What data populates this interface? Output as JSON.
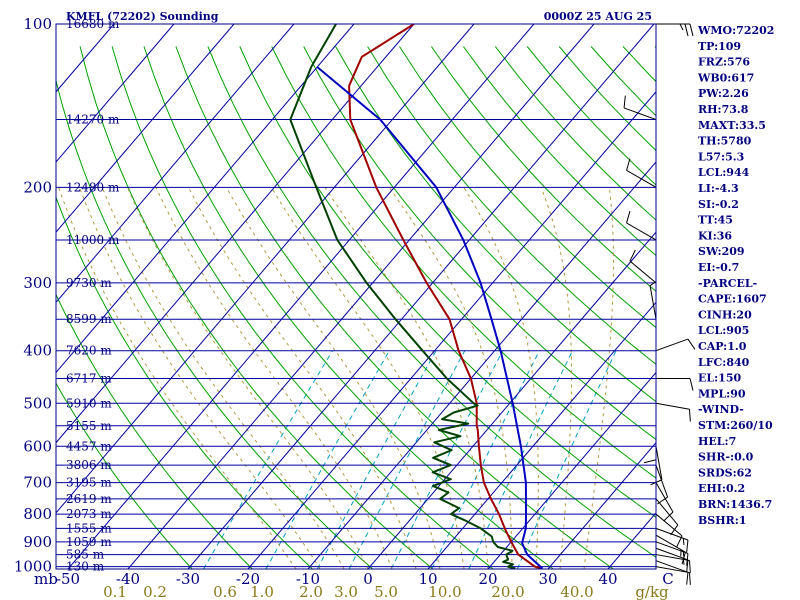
{
  "header": {
    "station": "KMFL (72202) Sounding",
    "datetime": "0000Z 25 AUG 25"
  },
  "indices": [
    "WMO:72202",
    "TP:109",
    "FRZ:576",
    "WB0:617",
    "PW:2.26",
    "RH:73.8",
    "MAXT:33.5",
    "TH:5780",
    "L57:5.3",
    "LCL:944",
    "LI:-4.3",
    "SI:-0.2",
    "TT:45",
    "KI:36",
    "SW:209",
    "EI:-0.7",
    "-PARCEL-",
    "CAPE:1607",
    "CINH:20",
    "LCL:905",
    "CAP:1.0",
    "LFC:840",
    "EL:150",
    "MPL:90",
    "-WIND-",
    "STM:260/10",
    "HEL:7",
    "SHR-:0.0",
    "SRDS:62",
    "EHI:0.2",
    "BRN:1436.7",
    "BSHR:1"
  ],
  "colors": {
    "frame": "#000080",
    "isotherm": "#0000a0",
    "dry_adiabat": "#00a000",
    "moist_adiabat": "#b09a40",
    "mixing_ratio": "#00a0c0",
    "temperature": "#a00000",
    "dewpoint": "#004000",
    "parcel": "#0000c0",
    "mix_label": "#8b7a1a"
  },
  "chart_data": {
    "type": "skew-t",
    "title": "KMFL (72202) Sounding 0000Z 25 AUG 25",
    "xlabel": "",
    "ylabel": "mb",
    "pressure_ticks": [
      100,
      200,
      300,
      400,
      500,
      600,
      700,
      800,
      900,
      1000
    ],
    "pressure_tick_labels": [
      "100",
      "200",
      "300",
      "400",
      "500",
      "600",
      "700",
      "800",
      "900",
      "1000"
    ],
    "ylabel_corner": "mb",
    "temperature_ticks": [
      -50,
      -40,
      -30,
      -20,
      -10,
      0,
      10,
      20,
      30,
      40,
      50
    ],
    "temperature_tick_labels": [
      "-50",
      "-40",
      "-30",
      "-20",
      "-10",
      "0",
      "10",
      "20",
      "30",
      "40",
      "C"
    ],
    "mixing_ratio_labels": [
      "0.1",
      "0.2",
      "0.6",
      "1.0",
      "2.0",
      "3.0",
      "5.0",
      "10.0",
      "20.0",
      "40.0",
      "g/kg"
    ],
    "height_levels": [
      {
        "p": 100,
        "label": "16680 m"
      },
      {
        "p": 150,
        "label": "14270 m"
      },
      {
        "p": 200,
        "label": "12480 m"
      },
      {
        "p": 250,
        "label": "11000 m"
      },
      {
        "p": 300,
        "label": "9730 m"
      },
      {
        "p": 350,
        "label": "8599 m"
      },
      {
        "p": 400,
        "label": "7620 m"
      },
      {
        "p": 450,
        "label": "6717 m"
      },
      {
        "p": 500,
        "label": "5910 m"
      },
      {
        "p": 550,
        "label": "5155 m"
      },
      {
        "p": 600,
        "label": "4457 m"
      },
      {
        "p": 650,
        "label": "3806 m"
      },
      {
        "p": 700,
        "label": "3195 m"
      },
      {
        "p": 750,
        "label": "2619 m"
      },
      {
        "p": 800,
        "label": "2073 m"
      },
      {
        "p": 850,
        "label": "1555 m"
      },
      {
        "p": 900,
        "label": "1059 m"
      },
      {
        "p": 950,
        "label": "585 m"
      },
      {
        "p": 1000,
        "label": "130 m"
      }
    ],
    "series": [
      {
        "name": "temperature",
        "points": [
          {
            "p": 1008,
            "t": 29.0
          },
          {
            "p": 1000,
            "t": 27.5
          },
          {
            "p": 950,
            "t": 23.0
          },
          {
            "p": 900,
            "t": 20.0
          },
          {
            "p": 850,
            "t": 17.0
          },
          {
            "p": 800,
            "t": 14.0
          },
          {
            "p": 750,
            "t": 10.5
          },
          {
            "p": 700,
            "t": 7.0
          },
          {
            "p": 650,
            "t": 4.0
          },
          {
            "p": 600,
            "t": 1.0
          },
          {
            "p": 560,
            "t": -1.5
          },
          {
            "p": 550,
            "t": -2.3
          },
          {
            "p": 500,
            "t": -5.5
          },
          {
            "p": 450,
            "t": -10.0
          },
          {
            "p": 400,
            "t": -16.0
          },
          {
            "p": 350,
            "t": -22.0
          },
          {
            "p": 300,
            "t": -31.0
          },
          {
            "p": 250,
            "t": -41.0
          },
          {
            "p": 200,
            "t": -53.0
          },
          {
            "p": 150,
            "t": -67.0
          },
          {
            "p": 130,
            "t": -72.0
          },
          {
            "p": 115,
            "t": -74.0
          },
          {
            "p": 100,
            "t": -70.0
          }
        ]
      },
      {
        "name": "dewpoint",
        "points": [
          {
            "p": 1008,
            "t": 24.5
          },
          {
            "p": 1000,
            "t": 23.0
          },
          {
            "p": 990,
            "t": 23.5
          },
          {
            "p": 980,
            "t": 21.5
          },
          {
            "p": 970,
            "t": 22.0
          },
          {
            "p": 950,
            "t": 21.0
          },
          {
            "p": 935,
            "t": 21.5
          },
          {
            "p": 920,
            "t": 18.5
          },
          {
            "p": 900,
            "t": 17.0
          },
          {
            "p": 880,
            "t": 16.0
          },
          {
            "p": 860,
            "t": 14.0
          },
          {
            "p": 850,
            "t": 13.0
          },
          {
            "p": 820,
            "t": 9.0
          },
          {
            "p": 800,
            "t": 6.0
          },
          {
            "p": 780,
            "t": 6.5
          },
          {
            "p": 750,
            "t": 2.0
          },
          {
            "p": 730,
            "t": 2.5
          },
          {
            "p": 710,
            "t": -1.0
          },
          {
            "p": 690,
            "t": 1.0
          },
          {
            "p": 670,
            "t": -3.0
          },
          {
            "p": 650,
            "t": -1.0
          },
          {
            "p": 630,
            "t": -5.0
          },
          {
            "p": 610,
            "t": -3.0
          },
          {
            "p": 590,
            "t": -7.0
          },
          {
            "p": 575,
            "t": -3.5
          },
          {
            "p": 560,
            "t": -8.0
          },
          {
            "p": 545,
            "t": -4.0
          },
          {
            "p": 535,
            "t": -9.0
          },
          {
            "p": 520,
            "t": -8.0
          },
          {
            "p": 505,
            "t": -5.0
          },
          {
            "p": 500,
            "t": -6.0
          },
          {
            "p": 450,
            "t": -14.0
          },
          {
            "p": 400,
            "t": -22.0
          },
          {
            "p": 350,
            "t": -31.0
          },
          {
            "p": 300,
            "t": -41.0
          },
          {
            "p": 250,
            "t": -52.0
          },
          {
            "p": 200,
            "t": -63.0
          },
          {
            "p": 150,
            "t": -77.0
          },
          {
            "p": 120,
            "t": -81.0
          },
          {
            "p": 100,
            "t": -83.0
          }
        ]
      },
      {
        "name": "parcel",
        "points": [
          {
            "p": 1008,
            "t": 29.0
          },
          {
            "p": 950,
            "t": 24.5
          },
          {
            "p": 905,
            "t": 22.0
          },
          {
            "p": 850,
            "t": 20.5
          },
          {
            "p": 800,
            "t": 18.5
          },
          {
            "p": 700,
            "t": 14.0
          },
          {
            "p": 600,
            "t": 8.0
          },
          {
            "p": 500,
            "t": 0.5
          },
          {
            "p": 400,
            "t": -9.0
          },
          {
            "p": 350,
            "t": -15.0
          },
          {
            "p": 300,
            "t": -22.0
          },
          {
            "p": 250,
            "t": -31.0
          },
          {
            "p": 200,
            "t": -43.0
          },
          {
            "p": 150,
            "t": -62.0
          },
          {
            "p": 120,
            "t": -80.0
          }
        ]
      }
    ],
    "wind_barbs": [
      {
        "p": 1000,
        "dir": 100,
        "spd": 10
      },
      {
        "p": 975,
        "dir": 110,
        "spd": 10
      },
      {
        "p": 950,
        "dir": 100,
        "spd": 10
      },
      {
        "p": 925,
        "dir": 110,
        "spd": 15
      },
      {
        "p": 900,
        "dir": 110,
        "spd": 15
      },
      {
        "p": 875,
        "dir": 120,
        "spd": 15
      },
      {
        "p": 850,
        "dir": 110,
        "spd": 15
      },
      {
        "p": 800,
        "dir": 130,
        "spd": 10
      },
      {
        "p": 750,
        "dir": 140,
        "spd": 10
      },
      {
        "p": 700,
        "dir": 150,
        "spd": 10
      },
      {
        "p": 650,
        "dir": 160,
        "spd": 10
      },
      {
        "p": 600,
        "dir": 170,
        "spd": 10
      },
      {
        "p": 550,
        "dir": 180,
        "spd": 10
      },
      {
        "p": 500,
        "dir": 100,
        "spd": 10
      },
      {
        "p": 450,
        "dir": 90,
        "spd": 10
      },
      {
        "p": 400,
        "dir": 70,
        "spd": 10
      },
      {
        "p": 350,
        "dir": 350,
        "spd": 5
      },
      {
        "p": 300,
        "dir": 310,
        "spd": 10
      },
      {
        "p": 250,
        "dir": 300,
        "spd": 10
      },
      {
        "p": 200,
        "dir": 300,
        "spd": 10
      },
      {
        "p": 150,
        "dir": 290,
        "spd": 10
      },
      {
        "p": 100,
        "dir": 90,
        "spd": 25
      }
    ]
  }
}
